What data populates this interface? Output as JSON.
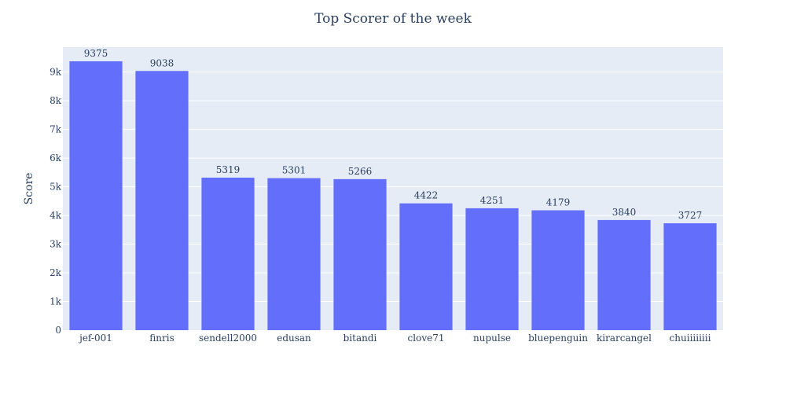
{
  "chart_data": {
    "type": "bar",
    "title": "Top Scorer of the week",
    "xlabel": "",
    "ylabel": "Score",
    "categories": [
      "jef-001",
      "finris",
      "sendell2000",
      "edusan",
      "bitandi",
      "clove71",
      "nupulse",
      "bluepenguin",
      "kirarcangel",
      "chuiiiiiiii"
    ],
    "values": [
      9375,
      9038,
      5319,
      5301,
      5266,
      4422,
      4251,
      4179,
      3840,
      3727
    ],
    "ylim": [
      0,
      9868
    ],
    "yticks": [
      0,
      1000,
      2000,
      3000,
      4000,
      5000,
      6000,
      7000,
      8000,
      9000
    ],
    "ytick_labels": [
      "0",
      "1k",
      "2k",
      "3k",
      "4k",
      "5k",
      "6k",
      "7k",
      "8k",
      "9k"
    ],
    "grid": true,
    "legend": "none",
    "colors": {
      "bar": "#636efa",
      "plot_bg": "#e5ecf6",
      "grid": "#ffffff",
      "text": "#2a3f5f"
    }
  }
}
